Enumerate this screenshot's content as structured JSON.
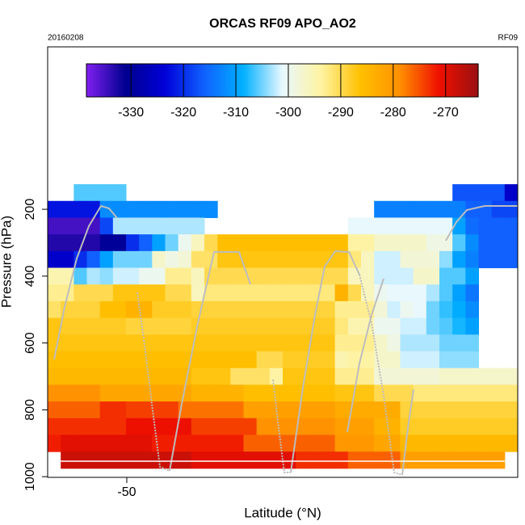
{
  "chart_data": {
    "type": "heatmap",
    "title": "ORCAS RF09 APO_AO2",
    "date_label": "20160208",
    "flight_label": "RF09",
    "x_label": "Latitude (°N)",
    "y_label": "Pressure (hPa)",
    "xlim": [
      -52,
      -40.12
    ],
    "xticks": [
      -50
    ],
    "ylim": [
      1002,
      -286
    ],
    "yticks": [
      200,
      400,
      600,
      800,
      1000
    ],
    "clim": [
      -338.5,
      -263.8
    ],
    "cticks": [
      -330,
      -320,
      -310,
      -300,
      -290,
      -280,
      -270
    ],
    "colormap": [
      "#8020f0",
      "#00008f",
      "#0000d8",
      "#1060ff",
      "#00b0ff",
      "#e8f8ff",
      "#fff3a0",
      "#ffc000",
      "#ff9000",
      "#f01000",
      "#9a1010"
    ],
    "x": [
      -51.835,
      -51.505,
      -51.175,
      -50.845,
      -50.515,
      -50.185,
      -49.855,
      -49.525,
      -49.195,
      -48.865,
      -48.535,
      -48.205,
      -47.875,
      -47.545,
      -47.215,
      -46.885,
      -46.555,
      -46.225,
      -45.895,
      -45.565,
      -45.235,
      -44.905,
      -44.575,
      -44.245,
      -43.915,
      -43.585,
      -43.255,
      -42.925,
      -42.595,
      -42.265,
      -41.935,
      -41.605,
      -41.275,
      -40.945,
      -40.615,
      -40.285
    ],
    "y": [
      150,
      200,
      250,
      300,
      350,
      400,
      450,
      500,
      550,
      600,
      650,
      700,
      750,
      800,
      850,
      900,
      950
    ],
    "z": [
      [
        null,
        null,
        -306,
        -306,
        -306,
        -306,
        null,
        null,
        null,
        null,
        null,
        null,
        null,
        null,
        null,
        null,
        null,
        null,
        null,
        null,
        null,
        null,
        null,
        null,
        null,
        null,
        null,
        null,
        null,
        null,
        null,
        -317,
        -317,
        -317,
        -317,
        -325
      ],
      [
        -322,
        -322,
        -322,
        -322,
        -312,
        -312,
        -312,
        -312,
        -312,
        -312,
        -312,
        -312,
        -312,
        null,
        null,
        null,
        null,
        null,
        null,
        null,
        null,
        null,
        null,
        null,
        null,
        -313,
        -313,
        -313,
        -313,
        -313,
        -313,
        -313,
        -316,
        -316,
        -318,
        -318
      ],
      [
        -335,
        -335,
        -335,
        -335,
        -318,
        -303,
        -303,
        -303,
        -303,
        -303,
        -303,
        -303,
        null,
        null,
        null,
        null,
        null,
        null,
        null,
        null,
        null,
        null,
        null,
        -301,
        -301,
        -301,
        -301,
        -301,
        -301,
        -301,
        -301,
        -310,
        -315,
        -316,
        -316,
        -316
      ],
      [
        -333,
        -333,
        -333,
        -333,
        -330,
        -330,
        -320,
        -316,
        -310,
        -305,
        -300,
        -296,
        -290,
        -286,
        -286,
        -286,
        -286,
        -286,
        -286,
        -286,
        -286,
        -286,
        -286,
        -294,
        -294,
        -297,
        -297,
        -297,
        -297,
        -299,
        -299,
        -306,
        -312,
        -316,
        -316,
        -316
      ],
      [
        -325,
        -325,
        -320,
        -316,
        -310,
        -305,
        -305,
        -305,
        -297,
        -299,
        -298,
        -291,
        -291,
        -287,
        -287,
        -287,
        -287,
        -287,
        -287,
        -287,
        -287,
        -287,
        -287,
        -292,
        -296,
        -302,
        -302,
        -298,
        -298,
        -298,
        -304,
        -310,
        -313,
        -316,
        -316,
        -316
      ],
      [
        -295,
        -295,
        -306,
        -303,
        -304,
        -302,
        -302,
        -300,
        -300,
        -293,
        -293,
        -296,
        -290,
        -290,
        -290,
        -290,
        -290,
        -290,
        -290,
        -290,
        -290,
        -290,
        -290,
        -296,
        -296,
        -302,
        -302,
        -302,
        -297,
        -297,
        -306,
        -306,
        -310,
        null,
        null,
        null
      ],
      [
        -293,
        -293,
        -290,
        -290,
        -290,
        -287,
        -287,
        -287,
        -287,
        -290,
        -290,
        -296,
        -292,
        -292,
        -292,
        -292,
        -292,
        -292,
        -292,
        -292,
        -292,
        -292,
        -284,
        -290,
        -296,
        -300,
        -301,
        -301,
        -301,
        -303,
        -306,
        -310,
        -314,
        null,
        null,
        null
      ],
      [
        -291,
        -289,
        -289,
        -289,
        -286,
        -286,
        -284,
        -284,
        -288,
        -288,
        -288,
        -289,
        -289,
        -289,
        -289,
        -289,
        -289,
        -289,
        -289,
        -289,
        -289,
        -289,
        -293,
        -293,
        -293,
        -298,
        -302,
        -300,
        -301,
        -305,
        -307,
        -309,
        -312,
        null,
        null,
        null
      ],
      [
        -287,
        -288,
        -288,
        -288,
        -288,
        -288,
        -289,
        -289,
        -289,
        -289,
        -289,
        -288,
        -288,
        -288,
        -288,
        -288,
        -288,
        -288,
        -288,
        -288,
        -288,
        -288,
        -292,
        -295,
        -295,
        -300,
        -300,
        -302,
        -302,
        -305,
        -306,
        -308,
        -310,
        null,
        null,
        null
      ],
      [
        -287,
        -287,
        -287,
        -287,
        -287,
        -287,
        -287,
        -287,
        -287,
        -287,
        -287,
        -287,
        -287,
        -287,
        -287,
        -287,
        -287,
        -287,
        -287,
        -287,
        -287,
        -287,
        -293,
        -293,
        -293,
        -297,
        -299,
        -303,
        -303,
        -303,
        -305,
        -305,
        -305,
        null,
        null,
        null
      ],
      [
        -286,
        -286,
        -286,
        -286,
        -286,
        -286,
        -286,
        -286,
        -286,
        -286,
        -286,
        -286,
        -286,
        -286,
        -286,
        -286,
        -290,
        -290,
        -288,
        -288,
        -288,
        -288,
        -295,
        -294,
        -294,
        -297,
        -297,
        -302,
        -302,
        -302,
        -304,
        -304,
        -304,
        null,
        null,
        null
      ],
      [
        -285,
        -285,
        -285,
        -285,
        -285,
        -285,
        -285,
        -285,
        -285,
        -285,
        -285,
        -287,
        -287,
        -287,
        -291,
        -291,
        -291,
        -294,
        -287,
        -287,
        -287,
        -287,
        -293,
        -293,
        -293,
        -298,
        -298,
        -298,
        -298,
        -298,
        -297,
        -297,
        -297,
        -297,
        -297,
        -297
      ],
      [
        -279,
        -279,
        -279,
        -279,
        -282,
        -282,
        -282,
        -282,
        -282,
        -282,
        -282,
        -284,
        -284,
        -284,
        -284,
        -286,
        -286,
        -286,
        -286,
        -286,
        -286,
        -286,
        -287,
        -287,
        -287,
        -290,
        -290,
        -290,
        -292,
        -292,
        -292,
        -292,
        -292,
        -292,
        -292,
        -292
      ],
      [
        -276,
        -276,
        -276,
        -276,
        -273,
        -273,
        -274,
        -274,
        -274,
        -274,
        -277,
        -277,
        -277,
        -277,
        -277,
        -281,
        -281,
        -281,
        -281,
        -281,
        -281,
        -281,
        -283,
        -283,
        -283,
        -283,
        -283,
        -289,
        -289,
        -289,
        -289,
        -289,
        -289,
        -289,
        -289,
        -289
      ],
      [
        -273,
        -273,
        -273,
        -273,
        -273,
        -273,
        -271,
        -271,
        -271,
        -271,
        -271,
        -274,
        -274,
        -274,
        -274,
        -274,
        -279,
        -279,
        -279,
        -279,
        -279,
        -279,
        -281,
        -281,
        -281,
        -284,
        -284,
        -288,
        -288,
        -288,
        -288,
        -288,
        -288,
        -288,
        -288,
        -288
      ],
      [
        -272,
        -270,
        -270,
        -270,
        -270,
        -270,
        -270,
        -270,
        -272,
        -272,
        -272,
        -272,
        -272,
        -272,
        -272,
        -276,
        -276,
        -276,
        -276,
        -276,
        -276,
        -276,
        -280,
        -280,
        -280,
        -282,
        -282,
        -285,
        -285,
        -285,
        -285,
        -285,
        -285,
        -285,
        -285,
        -285
      ],
      [
        null,
        -268,
        -268,
        -268,
        -268,
        -268,
        -268,
        -268,
        -268,
        -268,
        -268,
        -270,
        -270,
        -270,
        -270,
        -270,
        -270,
        -270,
        -270,
        -273,
        -273,
        -273,
        -273,
        -276,
        -276,
        -276,
        -276,
        -281,
        -281,
        -281,
        -281,
        -281,
        -281,
        -281,
        -281,
        null
      ]
    ]
  }
}
